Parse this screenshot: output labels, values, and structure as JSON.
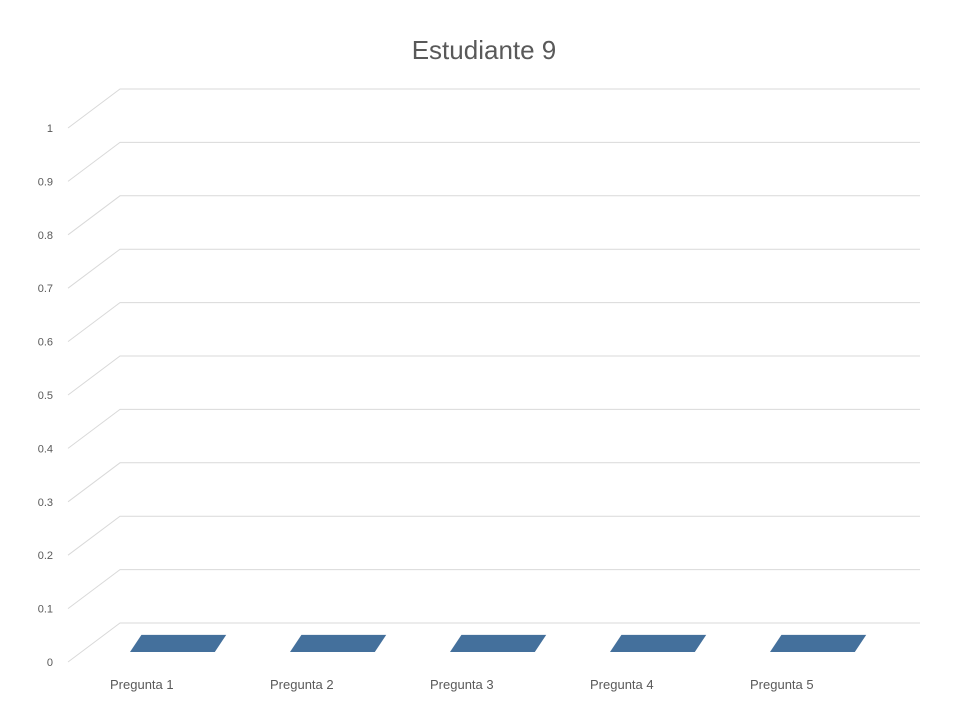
{
  "chart_data": {
    "type": "bar",
    "style": "3d-column",
    "title": "Estudiante 9",
    "categories": [
      "Pregunta 1",
      "Pregunta 2",
      "Pregunta 3",
      "Pregunta 4",
      "Pregunta 5"
    ],
    "values": [
      0,
      0,
      0,
      0,
      0
    ],
    "ylim": [
      0,
      1
    ],
    "yticks": [
      "0",
      "0.1",
      "0.2",
      "0.3",
      "0.4",
      "0.5",
      "0.6",
      "0.7",
      "0.8",
      "0.9",
      "1"
    ],
    "xlabel": "",
    "ylabel": "",
    "grid": true,
    "legend": "none",
    "bar_color": "#44709c",
    "grid_color": "#d9d9d9",
    "text_color": "#595959"
  }
}
